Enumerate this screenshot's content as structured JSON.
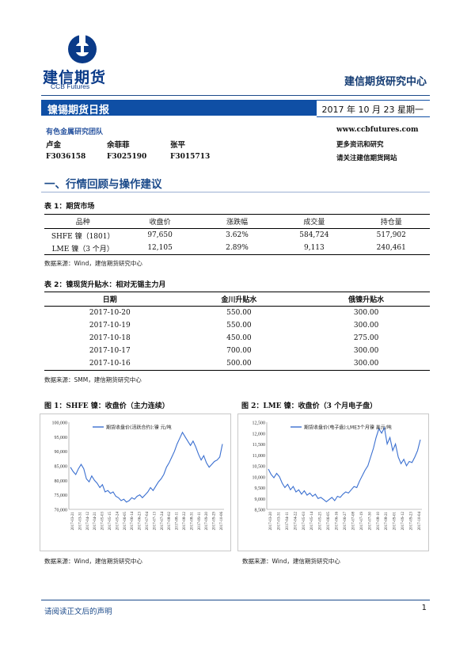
{
  "header": {
    "logo_name": "建信期货",
    "logo_en": "CCB Futures",
    "center_title": "建信期货研究中心",
    "report_title": "镍锡期货日报",
    "date": "2017 年 10 月 23 星期一"
  },
  "team": {
    "name": "有色金属研究团队",
    "members": [
      "卢金",
      "余菲菲",
      "张平"
    ],
    "codes": [
      "F3036158",
      "F3025190",
      "F3015713"
    ],
    "website": "www.ccbfutures.com",
    "more_line1": "更多资讯和研究",
    "more_line2": "请关注建信期货网站"
  },
  "section": {
    "title": "一、行情回顾与操作建议"
  },
  "table1": {
    "caption": "表 1：期货市场",
    "headers": [
      "品种",
      "收盘价",
      "涨跌幅",
      "成交量",
      "持仓量"
    ],
    "rows": [
      [
        "SHFE 镍（1801）",
        "97,650",
        "3.62%",
        "584,724",
        "517,902"
      ],
      [
        "LME 镍（3 个月）",
        "12,105",
        "2.89%",
        "9,113",
        "240,461"
      ]
    ],
    "source": "数据来源：Wind，建信期货研究中心"
  },
  "table2": {
    "caption": "表 2：镍现货升贴水：相对无锡主力月",
    "headers": [
      "日期",
      "金川升贴水",
      "俄镍升贴水"
    ],
    "rows": [
      [
        "2017-10-20",
        "550.00",
        "300.00"
      ],
      [
        "2017-10-19",
        "550.00",
        "300.00"
      ],
      [
        "2017-10-18",
        "450.00",
        "275.00"
      ],
      [
        "2017-10-17",
        "700.00",
        "300.00"
      ],
      [
        "2017-10-16",
        "500.00",
        "300.00"
      ]
    ],
    "source": "数据来源：SMM，建信期货研究中心"
  },
  "chart1_caption": "图 1：SHFE 镍：收盘价（主力连续）",
  "chart2_caption": "图 2：LME 镍：收盘价（3 个月电子盘）",
  "chart1_source": "数据来源：Wind，建信期货研究中心",
  "chart2_source": "数据来源：Wind，建信期货研究中心",
  "chart_data": [
    {
      "type": "line",
      "legend": "期货收盘价(活跃合约):镍  元/吨",
      "ylim": [
        70000,
        100000
      ],
      "yticks": [
        "70,000",
        "75,000",
        "80,000",
        "85,000",
        "90,000",
        "95,000",
        "100,000"
      ],
      "xticks": [
        "2017-03-21",
        "2017-03-31",
        "2017-04-12",
        "2017-04-21",
        "2017-05-03",
        "2017-05-15",
        "2017-05-24",
        "2017-06-05",
        "2017-06-14",
        "2017-06-23",
        "2017-07-04",
        "2017-07-13",
        "2017-07-24",
        "2017-08-02",
        "2017-08-11",
        "2017-08-22",
        "2017-08-31",
        "2017-09-11",
        "2017-09-20",
        "2017-09-29",
        "2017-10-06"
      ],
      "values": [
        84500,
        83000,
        82000,
        84000,
        85500,
        84000,
        80500,
        79500,
        81500,
        80000,
        79000,
        77500,
        78500,
        76000,
        76500,
        75500,
        76000,
        74500,
        74000,
        73000,
        73500,
        72500,
        73000,
        74000,
        73500,
        74500,
        75000,
        74000,
        75000,
        76000,
        77500,
        76500,
        78000,
        79500,
        80500,
        82000,
        84500,
        86000,
        88000,
        90000,
        92500,
        94500,
        96500,
        95000,
        93500,
        92000,
        93500,
        91500,
        89000,
        87000,
        88500,
        86000,
        84500,
        85500,
        86500,
        87000,
        88000,
        92500
      ]
    },
    {
      "type": "line",
      "legend": "期货收盘价(电子盘):LME3个月镍  美元/吨",
      "ylim": [
        8500,
        12500
      ],
      "yticks": [
        "8,500",
        "9,000",
        "9,500",
        "10,000",
        "10,500",
        "11,000",
        "11,500",
        "12,000",
        "12,500"
      ],
      "xticks": [
        "2017-03-20",
        "2017-03-31",
        "2017-04-11",
        "2017-04-22",
        "2017-05-03",
        "2017-05-14",
        "2017-05-25",
        "2017-06-05",
        "2017-06-16",
        "2017-06-27",
        "2017-07-08",
        "2017-07-19",
        "2017-07-30",
        "2017-08-10",
        "2017-08-21",
        "2017-09-01",
        "2017-09-12",
        "2017-09-23",
        "2017-10-04"
      ],
      "values": [
        10350,
        10100,
        9950,
        10150,
        10000,
        9700,
        9500,
        9650,
        9400,
        9550,
        9300,
        9400,
        9200,
        9350,
        9150,
        9250,
        9100,
        9200,
        9000,
        9050,
        8950,
        8850,
        8950,
        9050,
        8900,
        9100,
        9050,
        9200,
        9300,
        9250,
        9400,
        9550,
        9500,
        9800,
        10050,
        10300,
        10500,
        10900,
        11300,
        11800,
        12200,
        12000,
        12250,
        11500,
        11800,
        11200,
        11500,
        10900,
        10600,
        10800,
        10500,
        10700,
        10650,
        10900,
        11200,
        11700
      ]
    }
  ],
  "footer": {
    "notice": "请阅读正文后的声明",
    "page": "1"
  }
}
